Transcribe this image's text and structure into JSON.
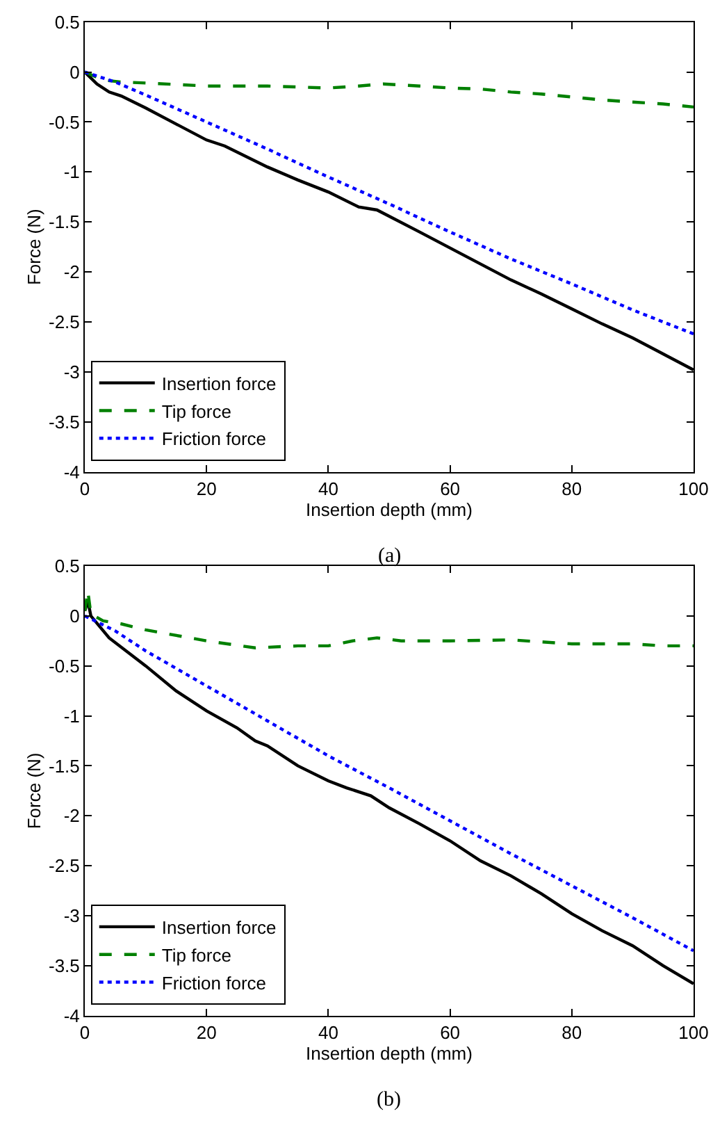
{
  "chart_data": [
    {
      "type": "line",
      "xlabel": "Insertion depth (mm)",
      "ylabel": "Force (N)",
      "annotations": [
        "(a)"
      ],
      "xlim": [
        0,
        100
      ],
      "xticks": [
        0,
        20,
        40,
        60,
        80,
        100
      ],
      "ylim": [
        -4,
        0.5
      ],
      "yticks": [
        -4,
        -3.5,
        -3,
        -2.5,
        -2,
        -1.5,
        -1,
        -0.5,
        0,
        0.5
      ],
      "legend": "bottom left",
      "marker": "none",
      "series": [
        {
          "name": "Insertion force",
          "color": "#000000",
          "line_style": "solid",
          "x": [
            0,
            2,
            4,
            6,
            10,
            15,
            20,
            23,
            30,
            35,
            40,
            45,
            48,
            55,
            60,
            65,
            70,
            75,
            80,
            85,
            90,
            95,
            100
          ],
          "values": [
            0,
            -0.12,
            -0.2,
            -0.24,
            -0.36,
            -0.52,
            -0.68,
            -0.74,
            -0.95,
            -1.08,
            -1.2,
            -1.35,
            -1.38,
            -1.6,
            -1.76,
            -1.92,
            -2.08,
            -2.22,
            -2.37,
            -2.52,
            -2.66,
            -2.82,
            -2.98
          ]
        },
        {
          "name": "Tip force",
          "color": "#008000",
          "line_style": "dashed",
          "x": [
            0,
            3,
            6,
            10,
            20,
            30,
            40,
            45,
            49,
            55,
            60,
            65,
            70,
            75,
            80,
            85,
            90,
            95,
            100
          ],
          "values": [
            0,
            -0.08,
            -0.1,
            -0.11,
            -0.14,
            -0.14,
            -0.16,
            -0.14,
            -0.12,
            -0.14,
            -0.16,
            -0.17,
            -0.2,
            -0.22,
            -0.25,
            -0.28,
            -0.3,
            -0.32,
            -0.35
          ]
        },
        {
          "name": "Friction force",
          "color": "#0000ff",
          "line_style": "dotted",
          "x": [
            0,
            5,
            10,
            20,
            30,
            40,
            50,
            60,
            70,
            80,
            90,
            100
          ],
          "values": [
            0,
            -0.1,
            -0.23,
            -0.5,
            -0.77,
            -1.05,
            -1.32,
            -1.6,
            -1.87,
            -2.12,
            -2.38,
            -2.62
          ]
        }
      ]
    },
    {
      "type": "line",
      "xlabel": "Insertion depth (mm)",
      "ylabel": "Force (N)",
      "annotations": [
        "(b)"
      ],
      "xlim": [
        0,
        100
      ],
      "xticks": [
        0,
        20,
        40,
        60,
        80,
        100
      ],
      "ylim": [
        -4,
        0.5
      ],
      "yticks": [
        -4,
        -3.5,
        -3,
        -2.5,
        -2,
        -1.5,
        -1,
        -0.5,
        0,
        0.5
      ],
      "legend": "bottom left",
      "marker": "none",
      "series": [
        {
          "name": "Insertion force",
          "color": "#000000",
          "line_style": "solid",
          "x": [
            0,
            0.5,
            1,
            4,
            10,
            15,
            20,
            25,
            28,
            30,
            35,
            40,
            43,
            47,
            50,
            55,
            60,
            65,
            70,
            75,
            80,
            85,
            90,
            95,
            100
          ],
          "values": [
            0.05,
            0.15,
            0,
            -0.22,
            -0.5,
            -0.75,
            -0.95,
            -1.12,
            -1.25,
            -1.3,
            -1.5,
            -1.65,
            -1.72,
            -1.8,
            -1.92,
            -2.08,
            -2.25,
            -2.45,
            -2.6,
            -2.78,
            -2.98,
            -3.15,
            -3.3,
            -3.5,
            -3.68
          ]
        },
        {
          "name": "Tip force",
          "color": "#008000",
          "line_style": "dashed",
          "x": [
            0,
            0.5,
            1,
            3,
            6,
            10,
            20,
            28,
            35,
            40,
            44,
            48,
            52,
            60,
            70,
            75,
            80,
            90,
            95,
            100
          ],
          "values": [
            0.05,
            0.25,
            0.02,
            -0.05,
            -0.08,
            -0.14,
            -0.25,
            -0.32,
            -0.3,
            -0.3,
            -0.25,
            -0.22,
            -0.25,
            -0.25,
            -0.24,
            -0.26,
            -0.28,
            -0.28,
            -0.3,
            -0.3
          ]
        },
        {
          "name": "Friction force",
          "color": "#0000ff",
          "line_style": "dotted",
          "x": [
            0,
            5,
            10,
            20,
            30,
            40,
            50,
            60,
            70,
            80,
            90,
            100
          ],
          "values": [
            0,
            -0.15,
            -0.35,
            -0.7,
            -1.05,
            -1.4,
            -1.72,
            -2.05,
            -2.38,
            -2.7,
            -3.02,
            -3.35
          ]
        }
      ]
    }
  ]
}
